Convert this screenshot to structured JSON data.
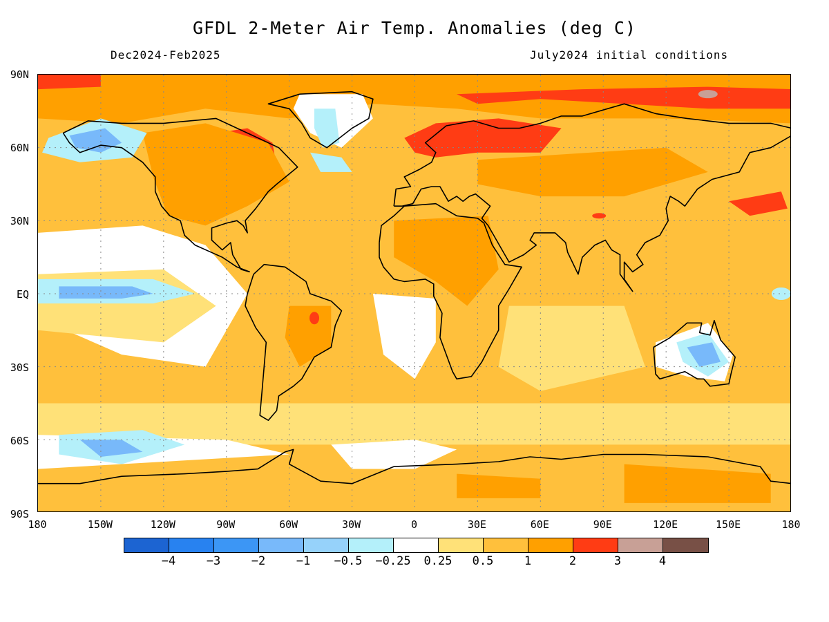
{
  "title": "GFDL 2-Meter Air Temp. Anomalies (deg C)",
  "subtitle_left": "Dec2024-Feb2025",
  "subtitle_right": "July2024 initial conditions",
  "lat_labels": [
    "90N",
    "60N",
    "30N",
    "EQ",
    "30S",
    "60S",
    "90S"
  ],
  "lon_labels": [
    "180",
    "150W",
    "120W",
    "90W",
    "60W",
    "30W",
    "0",
    "30E",
    "60E",
    "90E",
    "120E",
    "150E",
    "180"
  ],
  "colorbar": {
    "colors": [
      "#1c64d2",
      "#2882f0",
      "#3c96f5",
      "#78b9fa",
      "#96d2fa",
      "#b4f0fa",
      "#ffffff",
      "#ffe178",
      "#ffc03c",
      "#ffa000",
      "#ff3c14",
      "#c8a096",
      "#785046"
    ],
    "labels": [
      "-4",
      "-3",
      "-2",
      "-1",
      "-0.5",
      "-0.25",
      "0.25",
      "0.5",
      "1",
      "2",
      "3",
      "4"
    ]
  },
  "palette": {
    "blue": "#78b9fa",
    "light_blue": "#b4f0fa",
    "white": "#ffffff",
    "yellow": "#ffe178",
    "orange": "#ffc03c",
    "dark_orange": "#ffa000",
    "red": "#ff3c14",
    "pink": "#c8a096"
  }
}
